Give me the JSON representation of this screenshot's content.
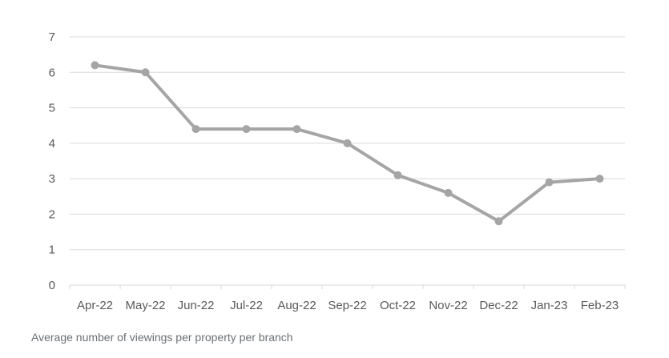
{
  "chart_data": {
    "type": "line",
    "categories": [
      "Apr-22",
      "May-22",
      "Jun-22",
      "Jul-22",
      "Aug-22",
      "Sep-22",
      "Oct-22",
      "Nov-22",
      "Dec-22",
      "Jan-23",
      "Feb-23"
    ],
    "values": [
      6.2,
      6.0,
      4.4,
      4.4,
      4.4,
      4.0,
      3.1,
      2.6,
      1.8,
      2.9,
      3.0
    ],
    "ylim": [
      0,
      7
    ],
    "yticks": [
      "0",
      "1",
      "2",
      "3",
      "4",
      "5",
      "6",
      "7"
    ],
    "grid": true,
    "line_color": "#a5a5a5",
    "grid_color": "#d9d9d9"
  },
  "caption": "Average number of viewings per property per branch"
}
